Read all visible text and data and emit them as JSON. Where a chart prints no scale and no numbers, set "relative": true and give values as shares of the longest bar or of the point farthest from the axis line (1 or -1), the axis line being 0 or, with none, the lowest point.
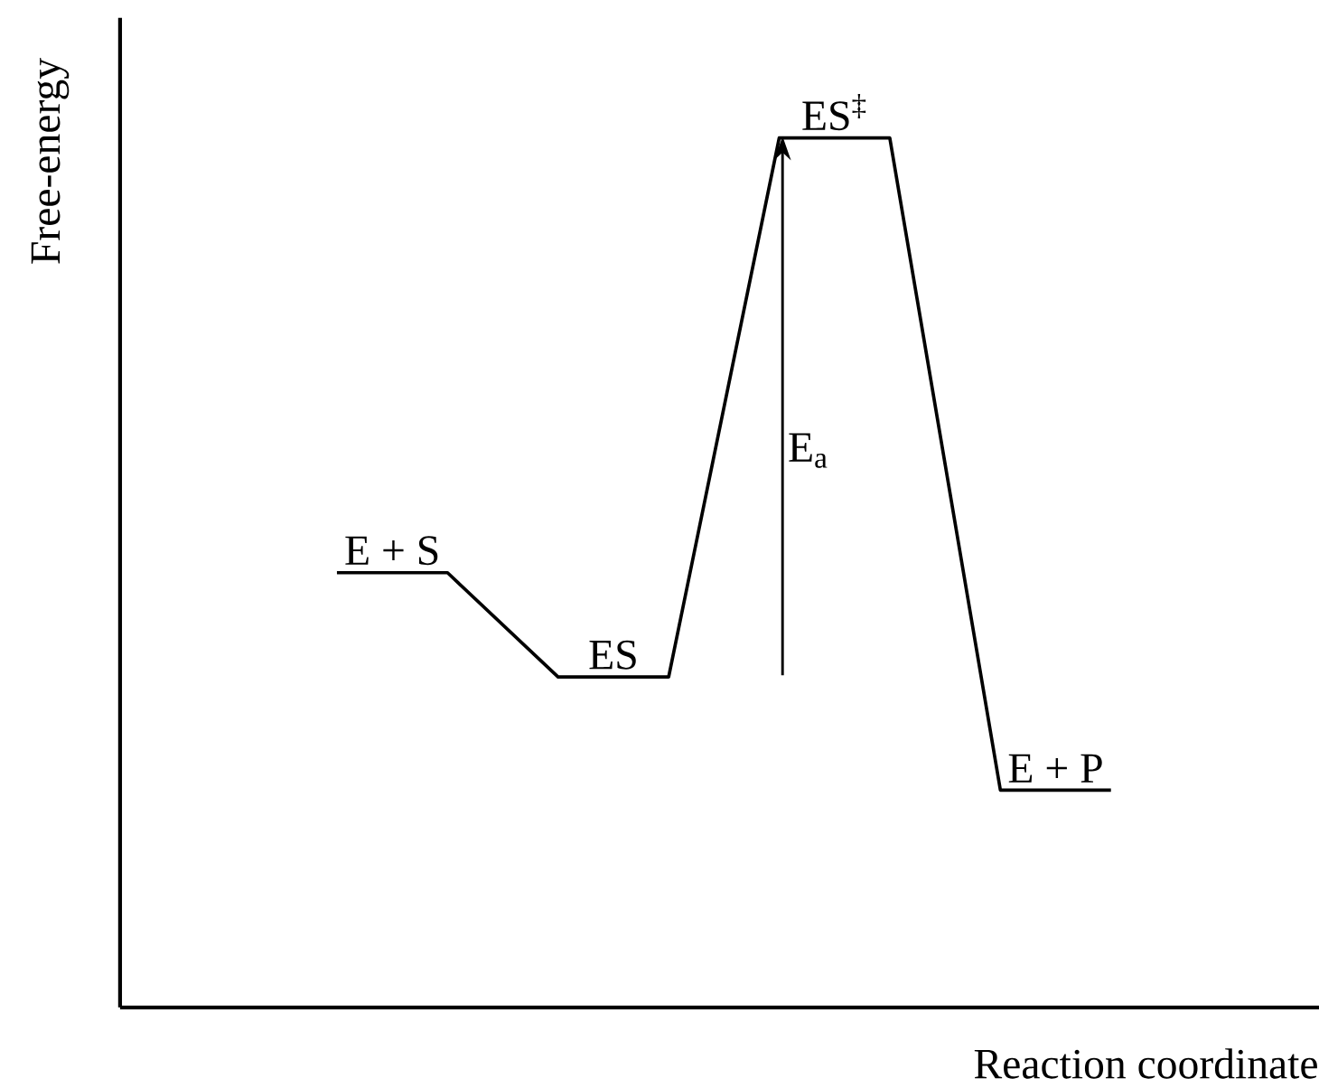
{
  "chart_data": {
    "type": "line",
    "relative": true,
    "xlabel": "Reaction coordinate",
    "ylabel": "Free-energy",
    "color": "#000000",
    "categories": [
      null,
      null,
      null,
      null,
      null,
      null,
      null,
      null
    ],
    "values": [
      0.5,
      0.5,
      0.38,
      0.38,
      1,
      1,
      0.25,
      0.25
    ],
    "annotations": [
      "E + S",
      "ES",
      "ES$^{‡}$",
      "E + P",
      "E$_{a}$"
    ]
  }
}
